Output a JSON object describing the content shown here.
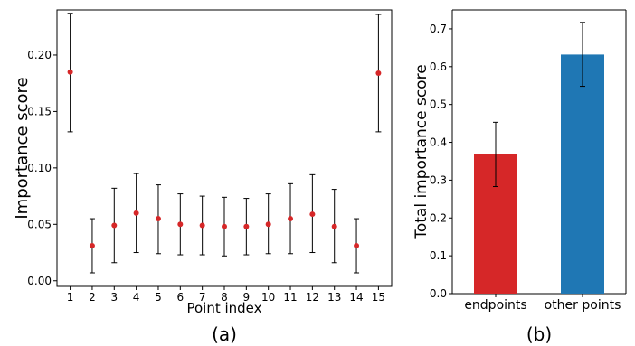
{
  "chart_data": [
    {
      "type": "scatter",
      "panel_label": "(a)",
      "xlabel": "Point index",
      "ylabel": "Importance score",
      "x_ticks": [
        "1",
        "2",
        "3",
        "4",
        "5",
        "6",
        "7",
        "8",
        "9",
        "10",
        "11",
        "12",
        "13",
        "14",
        "15"
      ],
      "y_ticks": [
        "0.00",
        "0.05",
        "0.10",
        "0.15",
        "0.20"
      ],
      "ylim": [
        -0.005,
        0.24
      ],
      "xlim": [
        0.4,
        15.6
      ],
      "grid": false,
      "marker_color": "#d62728",
      "errorbar_color": "#000000",
      "points": [
        {
          "x": 1,
          "y": 0.185,
          "lo": 0.132,
          "hi": 0.237
        },
        {
          "x": 2,
          "y": 0.031,
          "lo": 0.007,
          "hi": 0.055
        },
        {
          "x": 3,
          "y": 0.049,
          "lo": 0.016,
          "hi": 0.082
        },
        {
          "x": 4,
          "y": 0.06,
          "lo": 0.025,
          "hi": 0.095
        },
        {
          "x": 5,
          "y": 0.055,
          "lo": 0.024,
          "hi": 0.085
        },
        {
          "x": 6,
          "y": 0.05,
          "lo": 0.023,
          "hi": 0.077
        },
        {
          "x": 7,
          "y": 0.049,
          "lo": 0.023,
          "hi": 0.075
        },
        {
          "x": 8,
          "y": 0.048,
          "lo": 0.022,
          "hi": 0.074
        },
        {
          "x": 9,
          "y": 0.048,
          "lo": 0.023,
          "hi": 0.073
        },
        {
          "x": 10,
          "y": 0.05,
          "lo": 0.024,
          "hi": 0.077
        },
        {
          "x": 11,
          "y": 0.055,
          "lo": 0.024,
          "hi": 0.086
        },
        {
          "x": 12,
          "y": 0.059,
          "lo": 0.025,
          "hi": 0.094
        },
        {
          "x": 13,
          "y": 0.048,
          "lo": 0.016,
          "hi": 0.081
        },
        {
          "x": 14,
          "y": 0.031,
          "lo": 0.007,
          "hi": 0.055
        },
        {
          "x": 15,
          "y": 0.184,
          "lo": 0.132,
          "hi": 0.236
        }
      ]
    },
    {
      "type": "bar",
      "panel_label": "(b)",
      "xlabel": "",
      "ylabel": "Total importance score",
      "categories": [
        "endpoints",
        "other points"
      ],
      "values": [
        0.368,
        0.632
      ],
      "errors": [
        [
          0.283,
          0.453
        ],
        [
          0.548,
          0.717
        ]
      ],
      "colors": [
        "#d62728",
        "#1f77b4"
      ],
      "y_ticks": [
        "0.0",
        "0.1",
        "0.2",
        "0.3",
        "0.4",
        "0.5",
        "0.6",
        "0.7"
      ],
      "ylim": [
        0,
        0.75
      ],
      "grid": false
    }
  ]
}
